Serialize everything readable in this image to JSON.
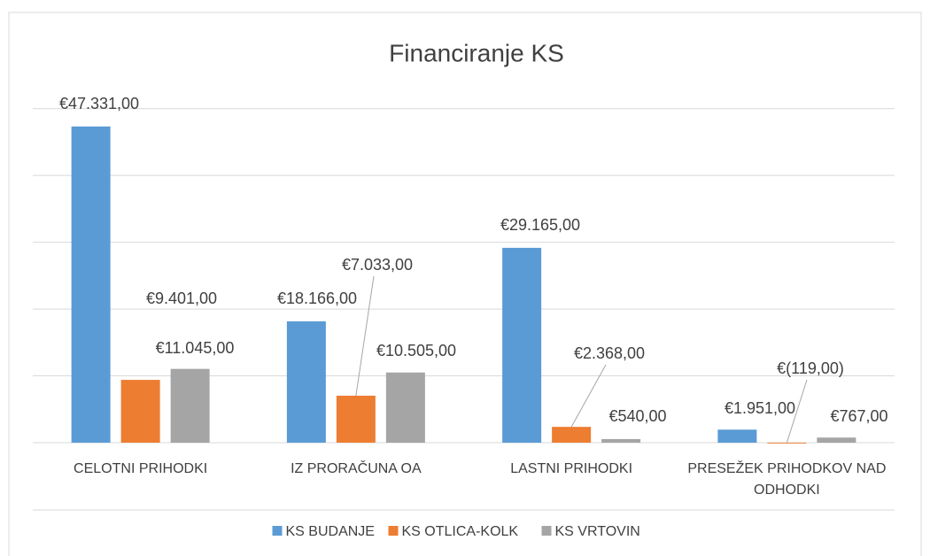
{
  "chart_data": {
    "type": "bar",
    "title": "Financiranje KS",
    "categories": [
      "CELOTNI PRIHODKI",
      "IZ PRORAČUNA OA",
      "LASTNI PRIHODKI",
      "PRESEŽEK PRIHODKOV NAD ODHODKI"
    ],
    "series": [
      {
        "name": "KS BUDANJE",
        "color": "#5b9bd5",
        "values": [
          47331,
          18166,
          29165,
          1951
        ],
        "value_labels": [
          "€47.331,00",
          "€18.166,00",
          "€29.165,00",
          "€1.951,00"
        ]
      },
      {
        "name": "KS OTLICA-KOLK",
        "color": "#ed7d31",
        "values": [
          9401,
          7033,
          2368,
          -119
        ],
        "value_labels": [
          "€9.401,00",
          "€7.033,00",
          "€2.368,00",
          "€(119,00)"
        ]
      },
      {
        "name": "KS VRTOVIN",
        "color": "#a5a5a5",
        "values": [
          11045,
          10505,
          540,
          767
        ],
        "value_labels": [
          "€11.045,00",
          "€10.505,00",
          "€540,00",
          "€767,00"
        ]
      }
    ],
    "ylim": [
      0,
      50000
    ],
    "yticks": [
      0,
      10000,
      20000,
      30000,
      40000,
      50000
    ],
    "grid": true,
    "legend": "bottom"
  }
}
